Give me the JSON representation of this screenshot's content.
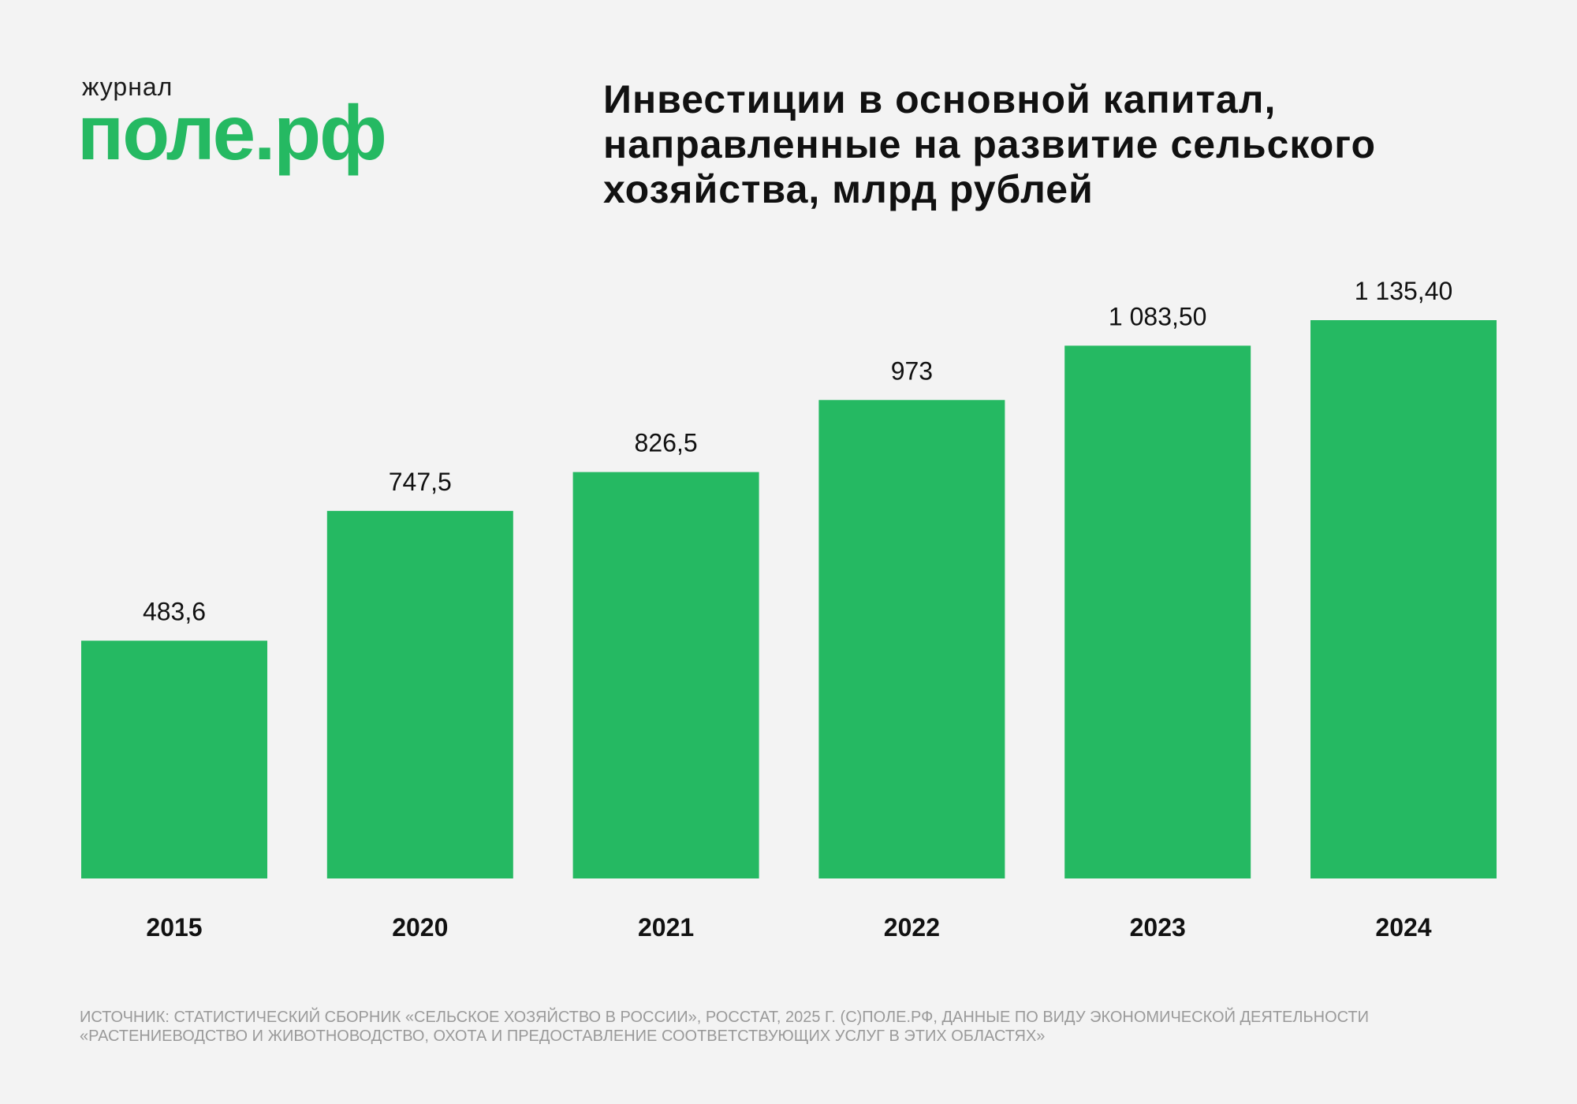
{
  "logo": {
    "small": "журнал",
    "large": "поле.рф"
  },
  "chart_data": {
    "type": "bar",
    "title": "Инвестиции в основной капитал, направленные на развитие сельского хозяйства, млрд рублей",
    "categories": [
      "2015",
      "2020",
      "2021",
      "2022",
      "2023",
      "2024"
    ],
    "values": [
      483.6,
      747.5,
      826.5,
      973,
      1083.5,
      1135.4
    ],
    "value_labels": [
      "483,6",
      "747,5",
      "826,5",
      "973",
      "1 083,50",
      "1 135,40"
    ],
    "color": "#25b962",
    "source": "Источник: статистический сборник «Сельское хозяйство в России», Росстат, 2025 г. (С)Поле.рф, данные по виду экономической деятельности «Растениеводство и животноводство, охота и предоставление соответствующих услуг в этих областях»"
  }
}
